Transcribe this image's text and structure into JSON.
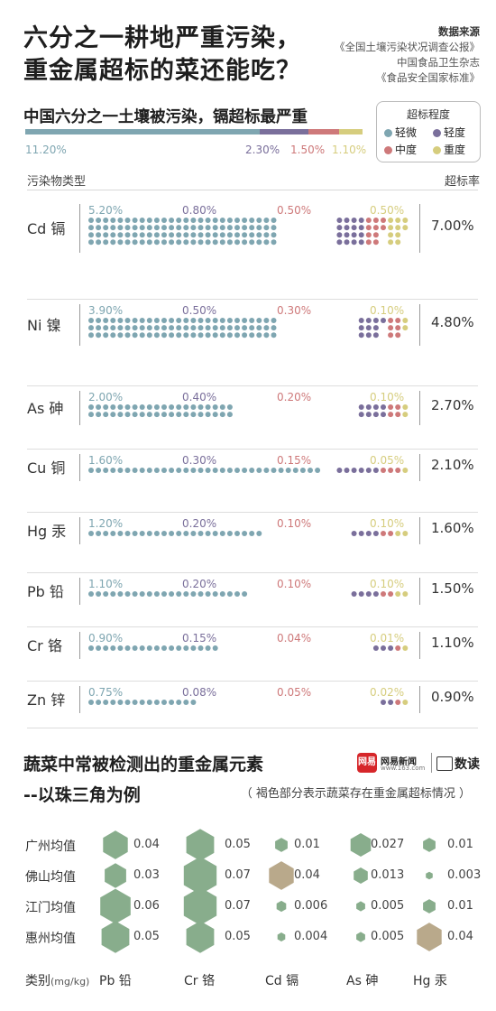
{
  "header": {
    "title_line1": "六分之一耕地严重污染，",
    "title_line2": "重金属超标的菜还能吃？",
    "source_label": "数据来源",
    "sources": [
      "《全国土壤污染状况调查公报》",
      "中国食品卫生杂志",
      "《食品安全国家标准》"
    ]
  },
  "colors": {
    "light": "#7fa6b1",
    "mild": "#7a6f9b",
    "moderate": "#ce797a",
    "severe": "#d6cd7e",
    "bubble_green": "#88ad8c",
    "bubble_brown": "#b9a98b"
  },
  "soil_chart": {
    "subtitle": "中国六分之一土壤被污染，镉超标最严重",
    "legend": {
      "title": "超标程度",
      "items": [
        {
          "key": "light",
          "label": "轻微"
        },
        {
          "key": "mild",
          "label": "轻度"
        },
        {
          "key": "moderate",
          "label": "中度"
        },
        {
          "key": "severe",
          "label": "重度"
        }
      ]
    },
    "summary": [
      "11.20%",
      "2.30%",
      "1.50%",
      "1.10%"
    ],
    "col_left_header": "污染物类型",
    "col_right_header": "超标率"
  },
  "veg_chart": {
    "title_line1": "蔬菜中常被检测出的重金属元素",
    "title_line2": "--以珠三角为例",
    "note": "（ 褐色部分表示蔬菜存在重金属超标情况 ）",
    "logo_badge": "网易",
    "logo_name": "网易新闻",
    "logo_url": "www.163.com",
    "logo_data": "数读",
    "axis_label": "类别",
    "axis_unit": "(mg/kg)",
    "cities": [
      "广州均值",
      "佛山均值",
      "江门均值",
      "惠州均值"
    ]
  },
  "chart_data": [
    {
      "type": "bar",
      "title": "中国六分之一土壤被污染，镉超标最严重",
      "xlabel": "污染物类型",
      "ylabel": "超标率",
      "summary": {
        "light": 11.2,
        "mild": 2.3,
        "moderate": 1.5,
        "severe": 1.1
      },
      "categories": [
        "Cd 镉",
        "Ni 镍",
        "As 砷",
        "Cu 铜",
        "Hg 汞",
        "Pb 铅",
        "Cr 铬",
        "Zn 锌"
      ],
      "rates": [
        "7.00%",
        "4.80%",
        "2.70%",
        "2.10%",
        "1.60%",
        "1.50%",
        "1.10%",
        "0.90%"
      ],
      "series": [
        {
          "name": "轻微",
          "labels": [
            "5.20%",
            "3.90%",
            "2.00%",
            "1.60%",
            "1.20%",
            "1.10%",
            "0.90%",
            "0.75%"
          ],
          "values": [
            5.2,
            3.9,
            2.0,
            1.6,
            1.2,
            1.1,
            0.9,
            0.75
          ]
        },
        {
          "name": "轻度",
          "labels": [
            "0.80%",
            "0.50%",
            "0.40%",
            "0.30%",
            "0.20%",
            "0.20%",
            "0.15%",
            "0.08%"
          ],
          "values": [
            0.8,
            0.5,
            0.4,
            0.3,
            0.2,
            0.2,
            0.15,
            0.08
          ]
        },
        {
          "name": "中度",
          "labels": [
            "0.50%",
            "0.30%",
            "0.20%",
            "0.15%",
            "0.10%",
            "0.10%",
            "0.04%",
            "0.05%"
          ],
          "values": [
            0.5,
            0.3,
            0.2,
            0.15,
            0.1,
            0.1,
            0.04,
            0.05
          ]
        },
        {
          "name": "重度",
          "labels": [
            "0.50%",
            "0.10%",
            "0.10%",
            "0.05%",
            "0.10%",
            "0.10%",
            "0.01%",
            "0.02%"
          ],
          "values": [
            0.5,
            0.1,
            0.1,
            0.05,
            0.1,
            0.1,
            0.01,
            0.02
          ]
        }
      ]
    },
    {
      "type": "scatter",
      "title": "蔬菜中常被检测出的重金属元素",
      "xlabel": "类别",
      "unit": "mg/kg",
      "x": [
        "Pb 铅",
        "Cr 铬",
        "Cd 镉",
        "As 砷",
        "Hg 汞"
      ],
      "y": [
        "广州均值",
        "佛山均值",
        "江门均值",
        "惠州均值"
      ],
      "values": [
        {
          "city": "广州均值",
          "vals": [
            0.04,
            0.05,
            0.01,
            0.027,
            0.01
          ],
          "labels": [
            "0.04",
            "0.05",
            "0.01",
            "0.027",
            "0.01"
          ],
          "exceed": [
            false,
            false,
            false,
            false,
            false
          ]
        },
        {
          "city": "佛山均值",
          "vals": [
            0.03,
            0.07,
            0.04,
            0.013,
            0.003
          ],
          "labels": [
            "0.03",
            "0.07",
            "0.04",
            "0.013",
            "0.003"
          ],
          "exceed": [
            false,
            false,
            true,
            false,
            false
          ]
        },
        {
          "city": "江门均值",
          "vals": [
            0.06,
            0.07,
            0.006,
            0.005,
            0.01
          ],
          "labels": [
            "0.06",
            "0.07",
            "0.006",
            "0.005",
            "0.01"
          ],
          "exceed": [
            false,
            false,
            false,
            false,
            false
          ]
        },
        {
          "city": "惠州均值",
          "vals": [
            0.05,
            0.05,
            0.004,
            0.005,
            0.04
          ],
          "labels": [
            "0.05",
            "0.05",
            "0.004",
            "0.005",
            "0.04"
          ],
          "exceed": [
            false,
            false,
            false,
            false,
            true
          ]
        }
      ]
    }
  ]
}
